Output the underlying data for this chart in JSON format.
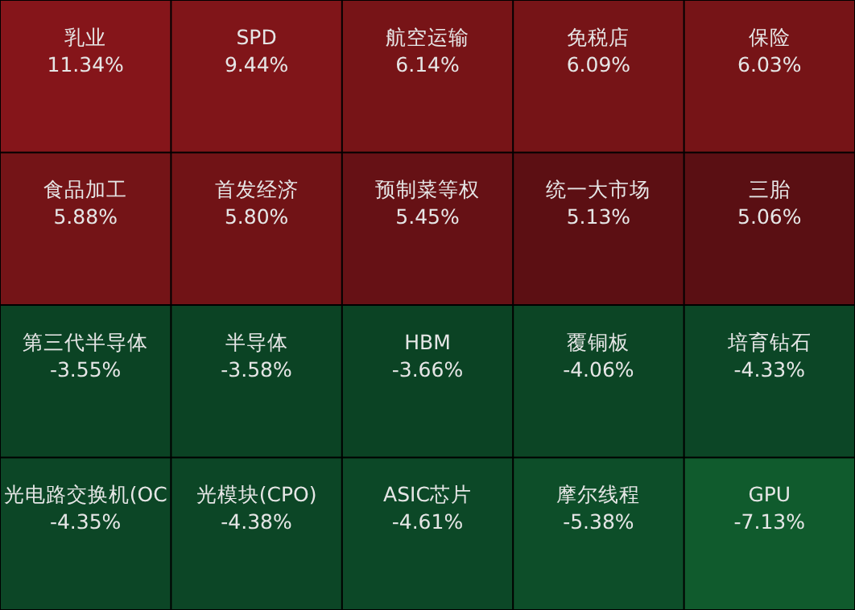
{
  "chart_data": {
    "type": "other",
    "categories": [
      "乳业",
      "SPD",
      "航空运输",
      "免税店",
      "保险",
      "食品加工",
      "首发经济",
      "预制菜等权",
      "统一大市场",
      "三胎",
      "第三代半导体",
      "半导体",
      "HBM",
      "覆铜板",
      "培育钻石",
      "光电路交换机(OC",
      "光模块(CPO)",
      "ASIC芯片",
      "摩尔线程",
      "GPU"
    ],
    "values": [
      11.34,
      9.44,
      6.14,
      6.09,
      6.03,
      5.88,
      5.8,
      5.45,
      5.13,
      5.06,
      -3.55,
      -3.58,
      -3.66,
      -4.06,
      -4.33,
      -4.35,
      -4.38,
      -4.61,
      -5.38,
      -7.13
    ],
    "value_labels": [
      "11.34%",
      "9.44%",
      "6.14%",
      "6.09%",
      "6.03%",
      "5.88%",
      "5.80%",
      "5.45%",
      "5.13%",
      "5.06%",
      "-3.55%",
      "-3.58%",
      "-3.66%",
      "-4.06%",
      "-4.33%",
      "-4.35%",
      "-4.38%",
      "-4.61%",
      "-5.38%",
      "-7.13%"
    ]
  }
}
